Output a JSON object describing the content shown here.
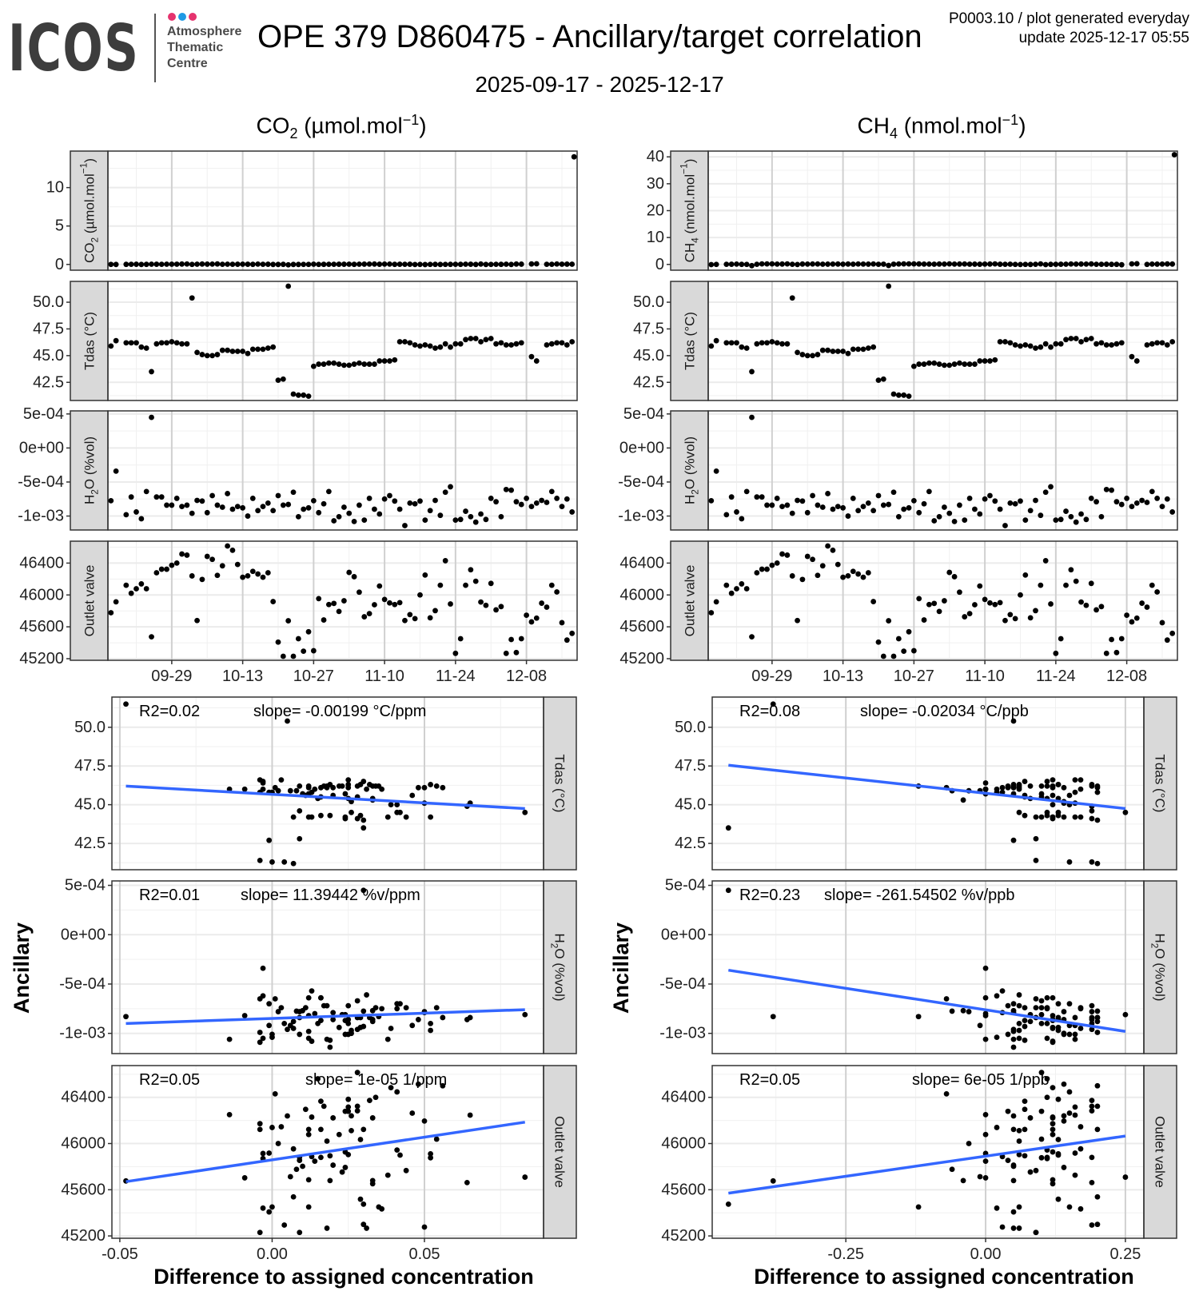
{
  "header": {
    "logo": "ICOS",
    "logo_lines": [
      "Atmosphere",
      "Thematic",
      "Centre"
    ],
    "logo_dot_colors": [
      "#e5336e",
      "#1f9ae5",
      "#e5336e"
    ],
    "title": "OPE 379 D860475 - Ancillary/target correlation",
    "meta_line1": "P0003.10 / plot generated everyday",
    "meta_line2": "update  2025-12-17 05:55",
    "date_range": "2025-09-17 - 2025-12-17"
  },
  "chart_data": {
    "type": "scatter",
    "start_date": "2025-09-17",
    "time_xlim": [
      -0.6,
      92
    ],
    "time_ticks": [
      {
        "day": 12,
        "label": "09-29"
      },
      {
        "day": 26,
        "label": "10-13"
      },
      {
        "day": 40,
        "label": "10-27"
      },
      {
        "day": 54,
        "label": "11-10"
      },
      {
        "day": 68,
        "label": "11-24"
      },
      {
        "day": 82,
        "label": "12-08"
      }
    ],
    "scatter_xlabel": "Difference to assigned concentration",
    "scatter_ylabel": "Ancillary",
    "colors": {
      "points": "#000000",
      "fit": "#3366ff",
      "strip": "#d9d9d9"
    },
    "ancillary": [
      {
        "key": "tdas",
        "strip": [
          [
            "Tdas (°C)",
            ""
          ]
        ],
        "ylim": [
          40.8,
          51.95
        ],
        "yticks": [
          {
            "v": 42.5,
            "label": "42.5"
          },
          {
            "v": 45.0,
            "label": "45.0"
          },
          {
            "v": 47.5,
            "label": "47.5"
          },
          {
            "v": 50.0,
            "label": "50.0"
          }
        ],
        "values": [
          45.9,
          46.4,
          null,
          46.2,
          46.2,
          46.2,
          45.8,
          45.7,
          43.5,
          46.1,
          46.2,
          46.2,
          46.3,
          46.2,
          46.1,
          46.1,
          50.4,
          45.3,
          45.1,
          45.0,
          45.0,
          45.1,
          45.5,
          45.5,
          45.4,
          45.4,
          45.4,
          45.2,
          45.6,
          45.6,
          45.6,
          45.7,
          45.8,
          42.7,
          42.8,
          51.5,
          41.4,
          41.3,
          41.3,
          41.2,
          44.0,
          44.2,
          44.2,
          44.3,
          44.3,
          44.2,
          44.1,
          44.1,
          44.2,
          44.3,
          44.2,
          44.2,
          44.2,
          44.5,
          44.5,
          44.5,
          44.6,
          46.3,
          46.3,
          46.2,
          46.0,
          45.9,
          46.0,
          45.9,
          45.7,
          45.8,
          46.1,
          45.8,
          46.1,
          46.1,
          46.5,
          46.6,
          46.6,
          46.3,
          46.5,
          46.6,
          46.1,
          46.2,
          46.0,
          46.0,
          46.1,
          46.2,
          null,
          44.9,
          44.5,
          null,
          46.0,
          46.1,
          46.2,
          46.2,
          46.0,
          46.3
        ]
      },
      {
        "key": "h2o",
        "strip": [
          [
            "H",
            ""
          ],
          [
            "2",
            "sub"
          ],
          [
            "O (%vol)",
            ""
          ]
        ],
        "ylim": [
          -0.001205,
          0.000545
        ],
        "yticks": [
          {
            "v": -0.001,
            "label": "-1e-03"
          },
          {
            "v": -0.0005,
            "label": "-5e-04"
          },
          {
            "v": 0,
            "label": "0e+00"
          },
          {
            "v": 0.0005,
            "label": "5e-04"
          }
        ],
        "values": [
          -0.000775,
          -0.00034,
          null,
          -0.00098,
          -0.00072,
          -0.00094,
          -0.00104,
          -0.00064,
          0.00045,
          -0.00072,
          -0.00072,
          -0.00084,
          -0.00084,
          -0.00074,
          -0.00086,
          -0.00084,
          -0.00096,
          -0.00077,
          -0.00078,
          -0.00095,
          -0.0007,
          -0.00084,
          -0.00087,
          -0.00067,
          -0.0009,
          -0.00086,
          -0.00088,
          -0.001,
          -0.00074,
          -0.00092,
          -0.00086,
          -0.00081,
          -0.00092,
          -0.0007,
          -0.00084,
          -0.00083,
          -0.00065,
          -0.00101,
          -0.0009,
          -0.00088,
          -0.000775,
          -0.00095,
          -0.00082,
          -0.00064,
          -0.00107,
          -0.00101,
          -0.00087,
          -0.00096,
          -0.00108,
          -0.00084,
          -0.00106,
          -0.00074,
          -0.0009,
          -0.00097,
          -0.00075,
          -0.0007,
          -0.00078,
          -0.0009,
          -0.00114,
          -0.00081,
          -0.00082,
          -0.00078,
          -0.00106,
          -0.00092,
          -0.00077,
          -0.00099,
          -0.00065,
          -0.00057,
          -0.00106,
          -0.00105,
          -0.00093,
          -0.00101,
          -0.00109,
          -0.00097,
          -0.00105,
          -0.00074,
          -0.00079,
          -0.00101,
          -0.00061,
          -0.00062,
          -0.00079,
          -0.00083,
          -0.00074,
          -0.00086,
          -0.00081,
          -0.00077,
          -0.0008,
          -0.00064,
          -0.00074,
          -0.00086,
          -0.00075,
          -0.00094
        ]
      },
      {
        "key": "outlet",
        "strip": [
          [
            "Outlet valve",
            ""
          ]
        ],
        "ylim": [
          45180,
          46675
        ],
        "yticks": [
          {
            "v": 45200,
            "label": "45200"
          },
          {
            "v": 45600,
            "label": "45600"
          },
          {
            "v": 46000,
            "label": "46000"
          },
          {
            "v": 46400,
            "label": "46400"
          }
        ],
        "values": [
          45777,
          45914,
          null,
          46122,
          46021,
          46078,
          46139,
          46078,
          45475,
          46279,
          46323,
          46323,
          46373,
          46400,
          46514,
          46500,
          46239,
          45679,
          46195,
          46484,
          46447,
          46246,
          46366,
          46615,
          46561,
          46383,
          46222,
          46240,
          46296,
          46263,
          46222,
          46279,
          45917,
          45408,
          45230,
          45676,
          45230,
          45451,
          45294,
          45538,
          45300,
          45954,
          45686,
          45880,
          45894,
          45793,
          45927,
          46283,
          46229,
          46035,
          45726,
          45766,
          45877,
          46112,
          45944,
          45900,
          45880,
          45904,
          45679,
          45753,
          45703,
          46000,
          46250,
          45713,
          45803,
          46122,
          46430,
          45887,
          45267,
          45451,
          46122,
          46316,
          46172,
          45911,
          45870,
          46145,
          45813,
          45854,
          45267,
          45441,
          45277,
          45451,
          45746,
          45662,
          45709,
          45897,
          45847,
          46122,
          46038,
          45652,
          45434,
          45518
        ]
      }
    ],
    "targets": [
      {
        "key": "co2",
        "header": [
          [
            "CO",
            ""
          ],
          [
            "2",
            "sub"
          ],
          [
            " (µmol.mol",
            ""
          ],
          [
            "−1",
            "sup"
          ],
          [
            ")",
            ""
          ]
        ],
        "strip": [
          [
            "CO",
            ""
          ],
          [
            "2",
            "sub"
          ],
          [
            " (µmol.mol",
            ""
          ],
          [
            "−1",
            "sup"
          ],
          [
            ")",
            ""
          ]
        ],
        "top_ylim": [
          -0.75,
          14.75
        ],
        "top_yticks": [
          {
            "v": 0,
            "label": "0"
          },
          {
            "v": 5,
            "label": "5"
          },
          {
            "v": 10,
            "label": "10"
          }
        ],
        "extra_point": {
          "day": 91.4,
          "value": 14.0
        },
        "diffs": [
          0.008,
          -0.003,
          null,
          0.012,
          0.018,
          0.022,
          0.0,
          0.012,
          0.03,
          0.025,
          0.017,
          0.028,
          0.032,
          0.034,
          0.048,
          0.056,
          0.005,
          0.033,
          0.05,
          0.039,
          0.041,
          0.065,
          0.016,
          0.028,
          0.015,
          0.025,
          0.033,
          0.026,
          0.011,
          0.046,
          0.02,
          0.024,
          -0.001,
          -0.001,
          0.009,
          -0.048,
          -0.004,
          0.0,
          0.004,
          0.007,
          0.03,
          0.007,
          0.012,
          0.016,
          0.019,
          0.024,
          0.024,
          0.028,
          0.013,
          0.029,
          0.038,
          0.044,
          0.052,
          0.026,
          0.041,
          0.042,
          0.009,
          0.025,
          0.019,
          0.023,
          -0.009,
          0.002,
          -0.014,
          0.006,
          0.01,
          -0.004,
          0.001,
          0.013,
          0.018,
          0.012,
          0.03,
          0.025,
          -0.004,
          0.052,
          -0.003,
          0.003,
          0.02,
          0.009,
          0.031,
          -0.003,
          0.05,
          0.035,
          null,
          0.064,
          0.083,
          null,
          0.014,
          0.016,
          0.054,
          0.033,
          0.036,
          0.029
        ],
        "scatter_xlim": [
          -0.0526,
          0.0891
        ],
        "scatter_xticks": [
          {
            "v": -0.05,
            "label": "-0.05"
          },
          {
            "v": 0,
            "label": "0.00"
          },
          {
            "v": 0.05,
            "label": "0.05"
          }
        ],
        "scatter_xminor": [
          -0.025,
          0.025,
          0.075
        ],
        "fits": [
          {
            "r2": "R2=0.02",
            "slope": "slope= -0.00199 °C/ppm",
            "x": [
              -0.048,
              0.083
            ],
            "y": [
              46.2,
              44.75
            ]
          },
          {
            "r2": "R2=0.01",
            "slope": "slope= 11.39442 %v/ppm",
            "x": [
              -0.048,
              0.083
            ],
            "y": [
              -0.0009,
              -0.00076
            ]
          },
          {
            "r2": "R2=0.05",
            "slope": "slope= 1e-05 1/ppm",
            "x": [
              -0.048,
              0.083
            ],
            "y": [
              45670,
              46185
            ]
          }
        ]
      },
      {
        "key": "ch4",
        "header": [
          [
            "CH",
            ""
          ],
          [
            "4",
            "sub"
          ],
          [
            " (nmol.mol",
            ""
          ],
          [
            "−1",
            "sup"
          ],
          [
            ")",
            ""
          ]
        ],
        "strip": [
          [
            "CH",
            ""
          ],
          [
            "4",
            "sub"
          ],
          [
            " (nmol.mol",
            ""
          ],
          [
            "−1",
            "sup"
          ],
          [
            ")",
            ""
          ]
        ],
        "top_ylim": [
          -2.15,
          42.15
        ],
        "top_yticks": [
          {
            "v": 0,
            "label": "0"
          },
          {
            "v": 10,
            "label": "10"
          },
          {
            "v": 20,
            "label": "20"
          },
          {
            "v": 30,
            "label": "30"
          },
          {
            "v": 40,
            "label": "40"
          }
        ],
        "extra_point": {
          "day": 91.4,
          "value": 40.8
        },
        "diffs": [
          -0.06,
          0.0,
          null,
          0.05,
          0.06,
          0.12,
          0.02,
          0.0,
          -0.46,
          0.04,
          0.19,
          0.2,
          0.19,
          0.11,
          0.14,
          0.2,
          0.05,
          -0.04,
          0.14,
          0.12,
          0.15,
          0.16,
          0.07,
          0.1,
          0.11,
          0.13,
          0.08,
          0.14,
          0.07,
          0.15,
          0.12,
          0.1,
          0.16,
          0.05,
          0.09,
          -0.38,
          0.09,
          0.15,
          0.19,
          0.2,
          0.2,
          0.17,
          0.12,
          0.11,
          0.07,
          0.14,
          0.12,
          0.19,
          0.12,
          0.13,
          0.16,
          0.09,
          0.1,
          0.06,
          0.11,
          0.13,
          0.19,
          0.06,
          0.05,
          0.08,
          0.0,
          -0.03,
          0.0,
          -0.01,
          0.05,
          0.2,
          -0.07,
          0.03,
          0.05,
          0.06,
          0.07,
          0.16,
          0.12,
          0.13,
          0.11,
          0.17,
          0.05,
          0.04,
          0.06,
          0.02,
          0.03,
          -0.12,
          null,
          0.19,
          0.25,
          null,
          0.0,
          0.12,
          0.1,
          0.12,
          0.17,
          0.13
        ],
        "scatter_xlim": [
          -0.489,
          0.283
        ],
        "scatter_xticks": [
          {
            "v": -0.25,
            "label": "-0.25"
          },
          {
            "v": 0,
            "label": "0.00"
          },
          {
            "v": 0.25,
            "label": "0.25"
          }
        ],
        "scatter_xminor": [
          -0.375,
          -0.125,
          0.125
        ],
        "fits": [
          {
            "r2": "R2=0.08",
            "slope": "slope= -0.02034 °C/ppb",
            "x": [
              -0.46,
              0.25
            ],
            "y": [
              47.55,
              44.75
            ]
          },
          {
            "r2": "R2=0.23",
            "slope": "slope= -261.54502 %v/ppb",
            "x": [
              -0.46,
              0.25
            ],
            "y": [
              -0.00036,
              -0.00098
            ]
          },
          {
            "r2": "R2=0.05",
            "slope": "slope= 6e-05 1/ppb",
            "x": [
              -0.46,
              0.25
            ],
            "y": [
              45570,
              46065
            ]
          }
        ]
      }
    ]
  }
}
